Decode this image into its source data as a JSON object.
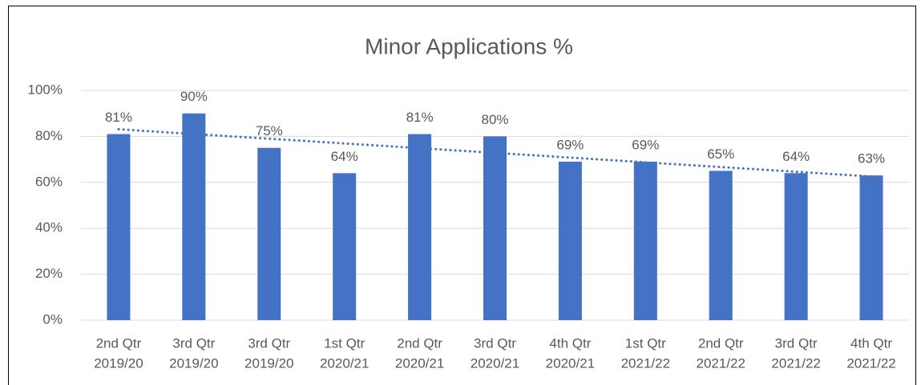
{
  "chart_data": {
    "type": "bar",
    "title": "Minor Applications %",
    "categories": [
      [
        "2nd Qtr",
        "2019/20"
      ],
      [
        "3rd Qtr",
        "2019/20"
      ],
      [
        "3rd Qtr",
        "2019/20"
      ],
      [
        "1st Qtr",
        "2020/21"
      ],
      [
        "2nd Qtr",
        "2020/21"
      ],
      [
        "3rd Qtr",
        "2020/21"
      ],
      [
        "4th Qtr",
        "2020/21"
      ],
      [
        "1st Qtr",
        "2021/22"
      ],
      [
        "2nd Qtr",
        "2021/22"
      ],
      [
        "3rd Qtr",
        "2021/22"
      ],
      [
        "4th Qtr",
        "2021/22"
      ]
    ],
    "values": [
      81,
      90,
      75,
      64,
      81,
      80,
      69,
      69,
      65,
      64,
      63
    ],
    "value_labels": [
      "81%",
      "90%",
      "75%",
      "64%",
      "81%",
      "80%",
      "69%",
      "69%",
      "65%",
      "64%",
      "63%"
    ],
    "color": "#4472c4",
    "ylim": [
      0,
      100
    ],
    "yticks": [
      {
        "value": 0,
        "label": "0%"
      },
      {
        "value": 20,
        "label": "20%"
      },
      {
        "value": 40,
        "label": "40%"
      },
      {
        "value": 60,
        "label": "60%"
      },
      {
        "value": 80,
        "label": "80%"
      },
      {
        "value": 100,
        "label": "100%"
      }
    ],
    "grid": true,
    "trendline": true
  }
}
